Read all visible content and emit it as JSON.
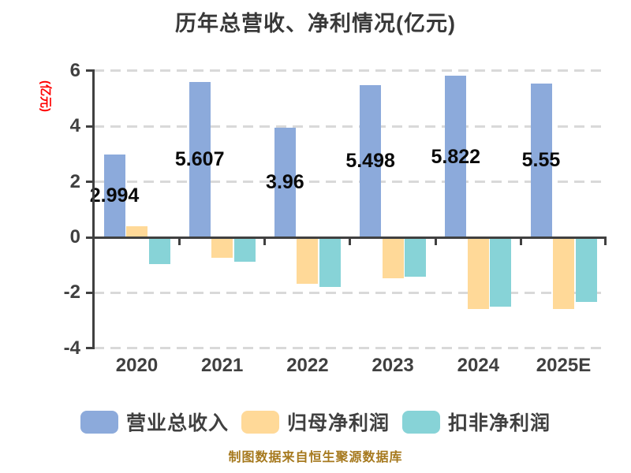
{
  "title": "历年总营收、净利情况(亿元)",
  "y_axis": {
    "label": "(亿元)",
    "label_color": "#ff0000"
  },
  "footer": {
    "text": "制图数据来自恒生聚源数据库",
    "color": "#a6791e"
  },
  "colors": {
    "axis": "#404040",
    "grid": "#d9d9d9",
    "tick_text": "#404040",
    "value_label": "#0a0a0a",
    "background": "#ffffff"
  },
  "chart_data": {
    "type": "bar",
    "title": "历年总营收、净利情况(亿元)",
    "ylabel": "(亿元)",
    "xlabel": "",
    "categories": [
      "2020",
      "2021",
      "2022",
      "2023",
      "2024",
      "2025E"
    ],
    "series": [
      {
        "name": "营业总收入",
        "color": "#8caadb",
        "values": [
          2.994,
          5.607,
          3.96,
          5.498,
          5.822,
          5.55
        ],
        "labels": [
          "2.994",
          "5.607",
          "3.96",
          "5.498",
          "5.822",
          "5.55"
        ]
      },
      {
        "name": "归母净利润",
        "color": "#ffd998",
        "values": [
          0.4,
          -0.74,
          -1.68,
          -1.48,
          -2.58,
          -2.59
        ]
      },
      {
        "name": "扣非净利润",
        "color": "#87d3d7",
        "values": [
          -0.97,
          -0.88,
          -1.8,
          -1.42,
          -2.51,
          -2.33
        ]
      }
    ],
    "ylim": [
      -4,
      6
    ],
    "yticks": [
      6,
      4,
      2,
      0,
      -2,
      -4
    ],
    "grid": true,
    "gridline_style": "dashed",
    "legend_position": "bottom"
  }
}
